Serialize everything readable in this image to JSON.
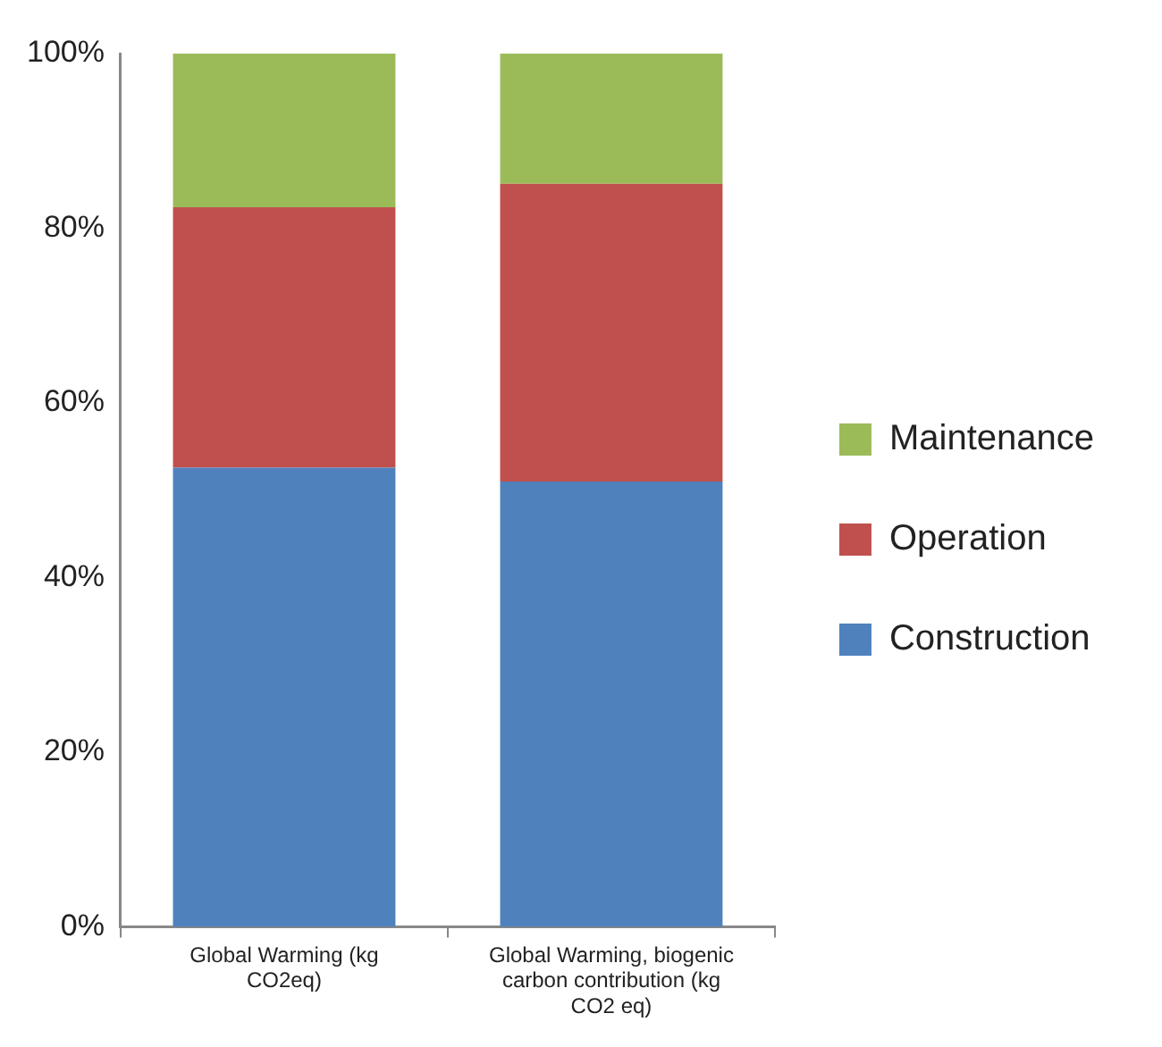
{
  "chart_data": {
    "type": "bar",
    "stacked": true,
    "categories": [
      "Global Warming (kg CO2eq)",
      "Global Warming, biogenic carbon contribution (kg CO2 eq)"
    ],
    "series": [
      {
        "name": "Construction",
        "color": "#4f81bd",
        "values": [
          52.6,
          51.0
        ]
      },
      {
        "name": "Operation",
        "color": "#c0504d",
        "values": [
          29.8,
          34.1
        ]
      },
      {
        "name": "Maintenance",
        "color": "#9bbb59",
        "values": [
          17.6,
          14.9
        ]
      }
    ],
    "ylim": [
      0,
      100
    ],
    "yticks": [
      {
        "value": 0,
        "label": "0%"
      },
      {
        "value": 20,
        "label": "20%"
      },
      {
        "value": 40,
        "label": "40%"
      },
      {
        "value": 60,
        "label": "60%"
      },
      {
        "value": 80,
        "label": "80%"
      },
      {
        "value": 100,
        "label": "100%"
      }
    ],
    "grid": false,
    "legend": "right"
  }
}
